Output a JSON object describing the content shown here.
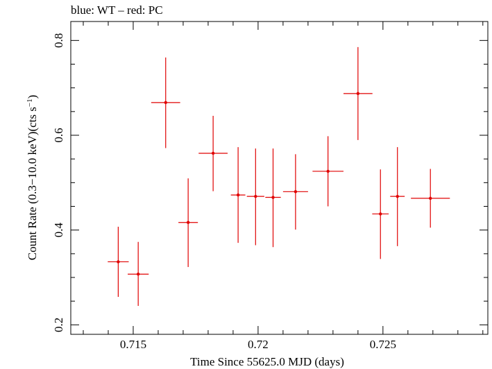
{
  "chart_data": {
    "type": "scatter",
    "title": "blue: WT – red: PC",
    "xlabel": "Time Since 55625.0 MJD (days)",
    "ylabel_main": "Count Rate (0.3−10.0 keV)(cts s",
    "ylabel_sup": "−1",
    "ylabel_close": ")",
    "xlim": [
      0.7125,
      0.7292
    ],
    "ylim": [
      0.18,
      0.84
    ],
    "x_ticks": [
      {
        "value": 0.715,
        "label": "0.715"
      },
      {
        "value": 0.72,
        "label": "0.72"
      },
      {
        "value": 0.725,
        "label": "0.725"
      }
    ],
    "y_ticks": [
      {
        "value": 0.2,
        "label": "0.2"
      },
      {
        "value": 0.4,
        "label": "0.4"
      },
      {
        "value": 0.6,
        "label": "0.6"
      },
      {
        "value": 0.8,
        "label": "0.8"
      }
    ],
    "series": [
      {
        "color": "#e00000",
        "points": [
          {
            "x": 0.7144,
            "xerr": 0.00042,
            "y": 0.333,
            "ylo": 0.259,
            "yhi": 0.407
          },
          {
            "x": 0.7152,
            "xerr": 0.00042,
            "y": 0.307,
            "ylo": 0.24,
            "yhi": 0.375
          },
          {
            "x": 0.7163,
            "xerr": 0.00058,
            "y": 0.669,
            "ylo": 0.573,
            "yhi": 0.764
          },
          {
            "x": 0.7172,
            "xerr": 0.00039,
            "y": 0.416,
            "ylo": 0.322,
            "yhi": 0.509
          },
          {
            "x": 0.7182,
            "xerr": 0.00058,
            "y": 0.562,
            "ylo": 0.482,
            "yhi": 0.641
          },
          {
            "x": 0.7192,
            "xerr": 0.00029,
            "y": 0.474,
            "ylo": 0.373,
            "yhi": 0.575
          },
          {
            "x": 0.7199,
            "xerr": 0.00035,
            "y": 0.471,
            "ylo": 0.368,
            "yhi": 0.572
          },
          {
            "x": 0.7206,
            "xerr": 0.00031,
            "y": 0.469,
            "ylo": 0.364,
            "yhi": 0.572
          },
          {
            "x": 0.7215,
            "xerr": 0.0005,
            "y": 0.481,
            "ylo": 0.401,
            "yhi": 0.56
          },
          {
            "x": 0.7228,
            "xerr": 0.00062,
            "y": 0.524,
            "ylo": 0.45,
            "yhi": 0.598
          },
          {
            "x": 0.724,
            "xerr": 0.00058,
            "y": 0.688,
            "ylo": 0.59,
            "yhi": 0.786
          },
          {
            "x": 0.7249,
            "xerr": 0.00033,
            "y": 0.434,
            "ylo": 0.339,
            "yhi": 0.528
          },
          {
            "x": 0.72558,
            "xerr": 0.00029,
            "y": 0.471,
            "ylo": 0.366,
            "yhi": 0.575
          },
          {
            "x": 0.7269,
            "xerr": 0.00078,
            "y": 0.467,
            "ylo": 0.405,
            "yhi": 0.529
          }
        ]
      }
    ]
  }
}
